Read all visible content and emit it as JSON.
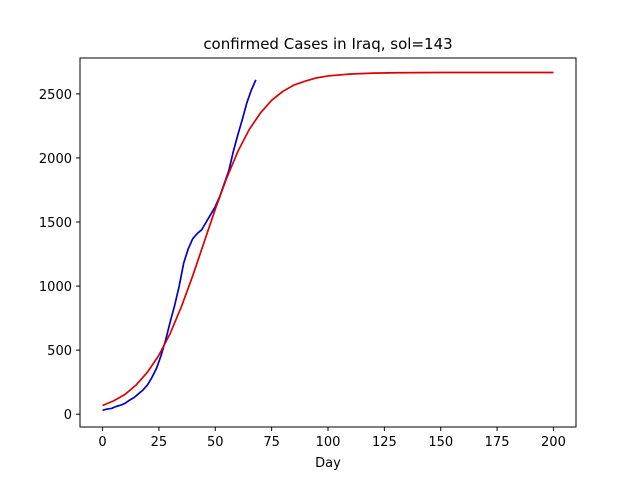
{
  "chart_data": {
    "type": "line",
    "title": "confirmed Cases in Iraq, sol=143",
    "xlabel": "Day",
    "ylabel": "",
    "xlim": [
      -10,
      210
    ],
    "ylim": [
      -100,
      2780
    ],
    "xticks": [
      0,
      25,
      50,
      75,
      100,
      125,
      150,
      175,
      200
    ],
    "yticks": [
      0,
      500,
      1000,
      1500,
      2000,
      2500
    ],
    "grid": false,
    "legend": "none",
    "series": [
      {
        "color": "#0000cc",
        "x": [
          0,
          2,
          4,
          6,
          8,
          10,
          12,
          14,
          16,
          18,
          20,
          22,
          24,
          26,
          28,
          30,
          32,
          34,
          36,
          38,
          40,
          42,
          44,
          46,
          48,
          50,
          52,
          54,
          56,
          58,
          60,
          62,
          64,
          66,
          68
        ],
        "y": [
          30,
          40,
          45,
          60,
          70,
          85,
          110,
          130,
          160,
          190,
          230,
          290,
          360,
          460,
          580,
          720,
          850,
          1000,
          1180,
          1290,
          1370,
          1410,
          1440,
          1500,
          1560,
          1620,
          1700,
          1800,
          1900,
          2050,
          2180,
          2300,
          2430,
          2530,
          2610
        ]
      },
      {
        "color": "#dd0000",
        "x": [
          0,
          5,
          10,
          15,
          20,
          25,
          30,
          35,
          40,
          45,
          50,
          55,
          60,
          65,
          70,
          75,
          80,
          85,
          90,
          95,
          100,
          110,
          120,
          130,
          140,
          150,
          175,
          200
        ],
        "y": [
          68,
          105,
          155,
          230,
          330,
          460,
          630,
          840,
          1080,
          1340,
          1600,
          1840,
          2050,
          2220,
          2350,
          2450,
          2520,
          2570,
          2600,
          2625,
          2640,
          2655,
          2662,
          2665,
          2666,
          2667,
          2667,
          2667
        ]
      }
    ]
  }
}
